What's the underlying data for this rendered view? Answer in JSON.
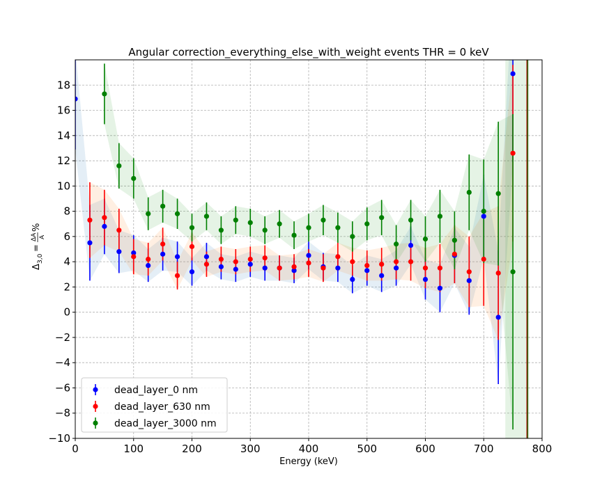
{
  "chart_data": {
    "type": "scatter",
    "title": "Angular correction_everything_else_with_weight events THR = 0 keV",
    "xlabel": "Energy (keV)",
    "ylabel_parts": {
      "base": "Δ",
      "sub": "3,0",
      "eq": "=",
      "num": "ΔA",
      "den": "A",
      "suffix": "%"
    },
    "xlim": [
      0,
      800
    ],
    "ylim": [
      -10,
      20
    ],
    "xticks": [
      0,
      100,
      200,
      300,
      400,
      500,
      600,
      700,
      800
    ],
    "yticks": [
      -10,
      -8,
      -6,
      -4,
      -2,
      0,
      2,
      4,
      6,
      8,
      10,
      12,
      14,
      16,
      18
    ],
    "grid": true,
    "legend_position": "lower-left",
    "series": [
      {
        "name": "dead_layer_0 nm",
        "color": "#0000ff",
        "band_color": "#1f77b4",
        "x": [
          0,
          25,
          50,
          75,
          100,
          125,
          150,
          175,
          200,
          225,
          250,
          275,
          300,
          325,
          350,
          375,
          400,
          425,
          450,
          475,
          500,
          525,
          550,
          575,
          600,
          625,
          650,
          675,
          700,
          725,
          750
        ],
        "y": [
          16.9,
          5.5,
          6.8,
          4.8,
          4.7,
          3.7,
          4.6,
          4.4,
          3.2,
          4.4,
          3.6,
          3.4,
          3.8,
          3.5,
          3.5,
          3.3,
          4.5,
          3.6,
          3.5,
          2.6,
          3.3,
          2.9,
          3.5,
          5.3,
          2.6,
          1.9,
          4.5,
          2.5,
          7.6,
          -0.4,
          18.9
        ],
        "yerr": [
          4.0,
          3.0,
          2.2,
          1.7,
          1.4,
          1.3,
          1.3,
          1.2,
          1.1,
          1.1,
          1.0,
          1.0,
          1.0,
          1.0,
          1.0,
          1.0,
          1.1,
          1.1,
          1.1,
          1.1,
          1.2,
          1.3,
          1.4,
          1.5,
          1.6,
          1.9,
          2.2,
          2.7,
          3.3,
          5.3,
          7.0
        ]
      },
      {
        "name": "dead_layer_630 nm",
        "color": "#ff0000",
        "band_color": "#ff7f0e",
        "x": [
          25,
          50,
          75,
          100,
          125,
          150,
          175,
          200,
          225,
          250,
          275,
          300,
          325,
          350,
          375,
          400,
          425,
          450,
          475,
          500,
          525,
          550,
          575,
          600,
          625,
          650,
          675,
          700,
          725,
          750
        ],
        "y": [
          7.3,
          7.5,
          6.5,
          4.4,
          4.2,
          5.4,
          2.9,
          5.2,
          3.8,
          4.2,
          4.0,
          4.2,
          4.3,
          3.5,
          3.6,
          3.9,
          3.5,
          4.4,
          4.0,
          3.7,
          3.8,
          4.0,
          4.0,
          3.5,
          3.5,
          4.6,
          3.2,
          4.2,
          3.1,
          12.6
        ],
        "yerr": [
          3.0,
          2.2,
          1.7,
          1.4,
          1.3,
          1.3,
          1.1,
          1.1,
          1.0,
          1.0,
          1.0,
          1.0,
          1.0,
          1.0,
          1.0,
          1.1,
          1.1,
          1.1,
          1.1,
          1.2,
          1.3,
          1.4,
          1.5,
          1.6,
          1.9,
          2.3,
          2.8,
          3.7,
          5.3,
          7.0
        ]
      },
      {
        "name": "dead_layer_3000 nm",
        "color": "#008000",
        "band_color": "#2ca02c",
        "x": [
          50,
          75,
          100,
          125,
          150,
          175,
          200,
          225,
          250,
          275,
          300,
          325,
          350,
          375,
          400,
          425,
          450,
          475,
          500,
          525,
          550,
          575,
          600,
          625,
          650,
          675,
          700,
          725,
          750
        ],
        "y": [
          17.3,
          11.6,
          10.6,
          7.8,
          8.4,
          7.8,
          6.7,
          7.6,
          6.5,
          7.3,
          7.1,
          6.5,
          7.0,
          6.1,
          6.7,
          7.3,
          6.7,
          6.0,
          7.0,
          7.5,
          5.4,
          7.3,
          5.8,
          7.6,
          5.7,
          9.5,
          8.0,
          9.4,
          3.2
        ],
        "yerr": [
          2.4,
          1.8,
          1.6,
          1.3,
          1.3,
          1.2,
          1.1,
          1.1,
          1.1,
          1.1,
          1.1,
          1.1,
          1.1,
          1.1,
          1.1,
          1.2,
          1.2,
          1.2,
          1.3,
          1.4,
          1.5,
          1.6,
          1.8,
          2.1,
          2.3,
          3.0,
          4.1,
          5.7,
          12.5
        ]
      }
    ]
  }
}
